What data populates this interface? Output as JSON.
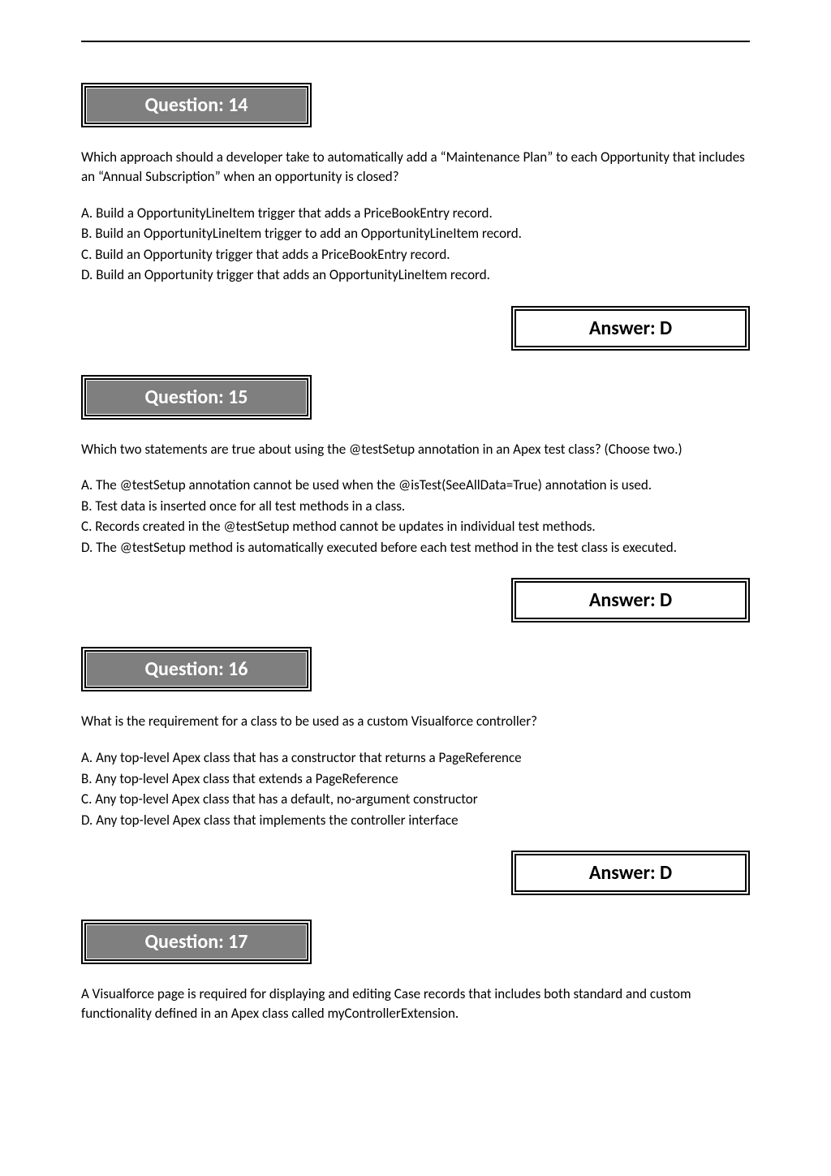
{
  "colors": {
    "question_bg": "#7f7f7f",
    "question_text_color": "#ffffff",
    "answer_bg": "#ffffff",
    "answer_text_color": "#000000",
    "border_color": "#000000",
    "body_text": "#000000"
  },
  "typography": {
    "label_fontsize": 24,
    "body_fontsize": 17,
    "label_weight": "bold"
  },
  "questions": [
    {
      "number": "Question: 14",
      "prompt": "Which approach should a developer take to automatically add a “Maintenance Plan” to each Opportunity that includes an “Annual Subscription” when an opportunity is closed?",
      "options": [
        "A. Build a OpportunityLineItem trigger that adds a PriceBookEntry record.",
        "B. Build an OpportunityLineItem trigger to add an OpportunityLineItem record.",
        "C. Build an Opportunity trigger that adds a PriceBookEntry record.",
        "D. Build an Opportunity trigger that adds an OpportunityLineItem record."
      ],
      "answer": "Answer: D"
    },
    {
      "number": "Question: 15",
      "prompt": "Which two statements are true about using the @testSetup annotation in an Apex test class? (Choose two.)",
      "options": [
        "A. The @testSetup annotation cannot be used when the @isTest(SeeAllData=True) annotation is used.",
        "B. Test data is inserted once for all test methods in a class.",
        "C. Records created in the @testSetup method cannot be updates in individual test methods.",
        "D. The @testSetup method is automatically executed before each test method in the test class is executed."
      ],
      "answer": "Answer: D"
    },
    {
      "number": "Question: 16",
      "prompt": "What is the requirement for a class to be used as a custom Visualforce controller?",
      "options": [
        "A. Any top-level Apex class that has a constructor that returns a PageReference",
        "B. Any top-level Apex class that extends a PageReference",
        "C. Any top-level Apex class that has a default, no-argument constructor",
        "D. Any top-level Apex class that implements the controller interface"
      ],
      "answer": "Answer: D"
    },
    {
      "number": "Question: 17",
      "prompt": "A Visualforce page is required for displaying and editing Case records that includes both standard and custom functionality defined in an Apex class called myControllerExtension.",
      "options": [],
      "answer": null
    }
  ]
}
